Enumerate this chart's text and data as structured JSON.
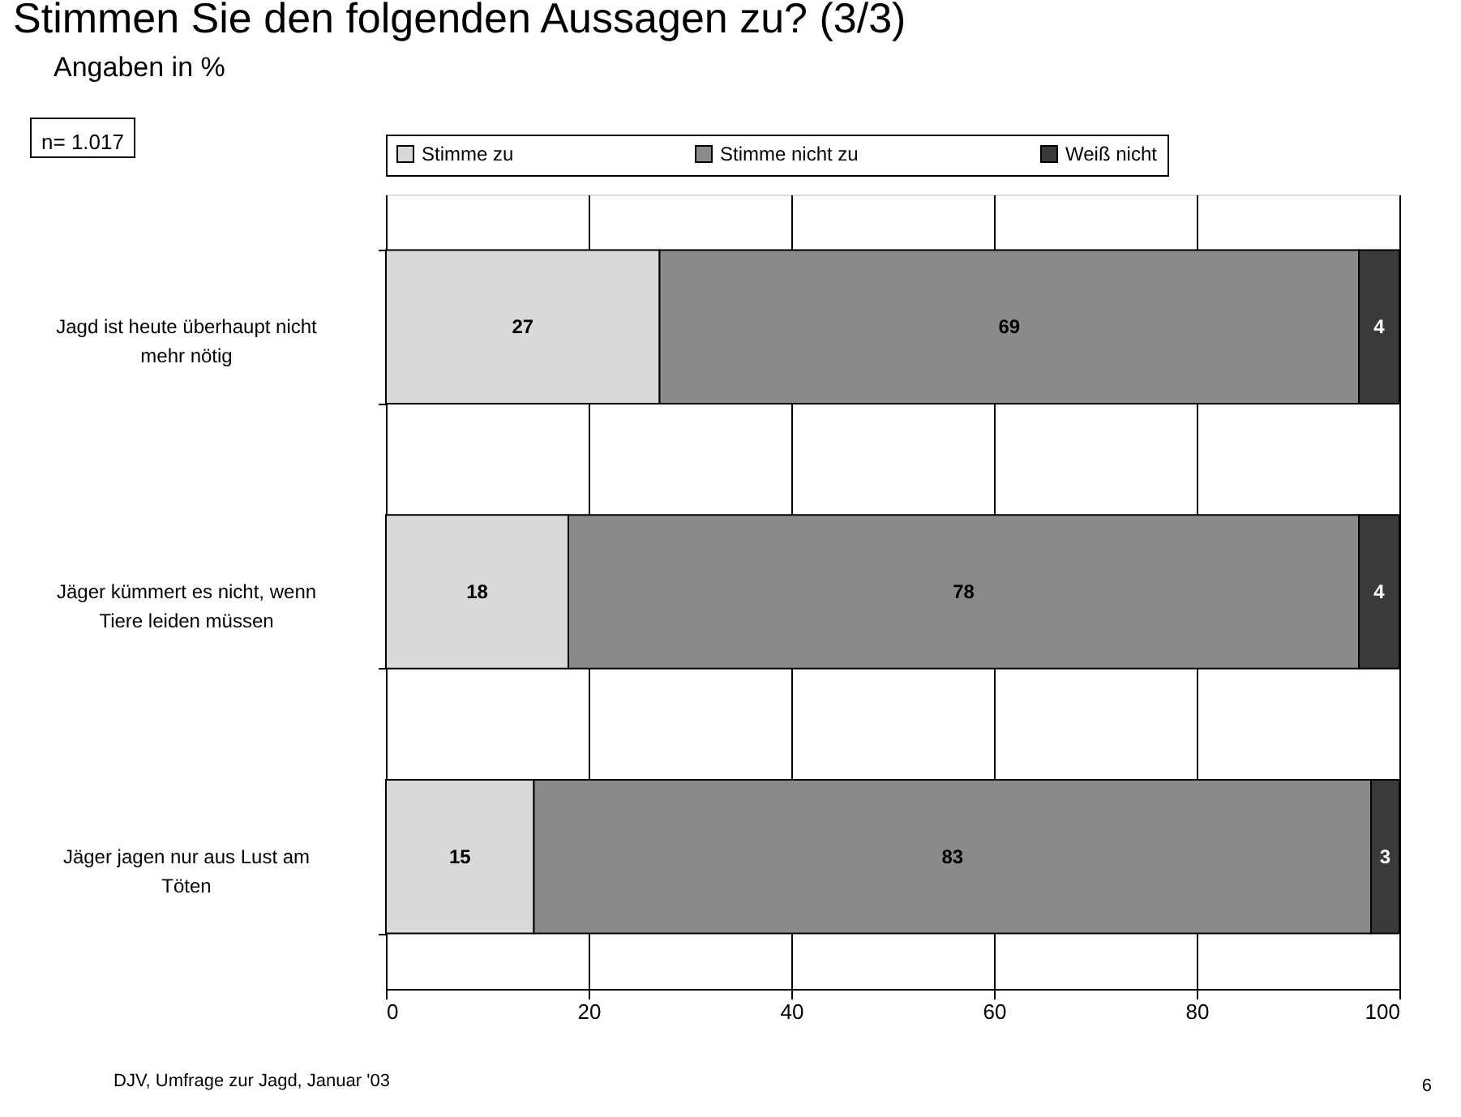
{
  "chart_data": {
    "type": "bar",
    "orientation": "horizontal",
    "stacked": true,
    "title": "Stimmen Sie den folgenden Aussagen zu?  (3/3)",
    "subtitle": "Angaben in %",
    "categories": [
      "Jagd ist heute überhaupt nicht mehr nötig",
      "Jäger kümmert es nicht, wenn Tiere leiden müssen",
      "Jäger jagen nur aus Lust am Töten"
    ],
    "series": [
      {
        "name": "Stimme zu",
        "color": "#d9d9d9",
        "values": [
          27,
          18,
          14.6
        ],
        "value_labels": [
          "27",
          "18",
          "15"
        ]
      },
      {
        "name": "Stimme nicht zu",
        "color": "#8a8a8a",
        "values": [
          69,
          78,
          82.6
        ],
        "value_labels": [
          "69",
          "78",
          "83"
        ]
      },
      {
        "name": "Weiß nicht",
        "color": "#3a3a3a",
        "values": [
          4,
          4,
          2.8
        ],
        "value_labels": [
          "4",
          "4",
          "3"
        ]
      }
    ],
    "xlim": [
      0,
      100
    ],
    "xticks": [
      0,
      20,
      40,
      60,
      80,
      100
    ],
    "grid": "x",
    "legend": "top",
    "annotations": [
      "n= 1.017",
      "DJV,  Umfrage zur Jagd, Januar '03",
      "6"
    ]
  }
}
